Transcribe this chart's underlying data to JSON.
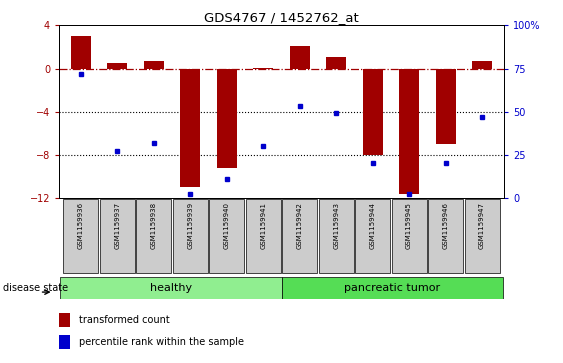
{
  "title": "GDS4767 / 1452762_at",
  "samples": [
    "GSM1159936",
    "GSM1159937",
    "GSM1159938",
    "GSM1159939",
    "GSM1159940",
    "GSM1159941",
    "GSM1159942",
    "GSM1159943",
    "GSM1159944",
    "GSM1159945",
    "GSM1159946",
    "GSM1159947"
  ],
  "bar_values": [
    3.0,
    0.5,
    0.7,
    -11.0,
    -9.2,
    0.05,
    2.1,
    1.1,
    -8.0,
    -11.6,
    -7.0,
    0.7
  ],
  "percentile_values": [
    72,
    27,
    32,
    2,
    11,
    30,
    53,
    49,
    20,
    2,
    20,
    47
  ],
  "bar_color": "#a00000",
  "dot_color": "#0000cc",
  "left_ylim": [
    -12,
    4
  ],
  "right_ylim": [
    0,
    100
  ],
  "left_yticks": [
    -12,
    -8,
    -4,
    0,
    4
  ],
  "right_yticks": [
    0,
    25,
    50,
    75,
    100
  ],
  "right_yticklabels": [
    "0",
    "25",
    "50",
    "75",
    "100%"
  ],
  "hline_y": 0,
  "dotted_lines": [
    -4,
    -8
  ],
  "healthy_label": "healthy",
  "tumor_label": "pancreatic tumor",
  "healthy_color": "#90ee90",
  "tumor_color": "#55dd55",
  "group_box_color": "#cccccc",
  "legend_bar_label": "transformed count",
  "legend_dot_label": "percentile rank within the sample",
  "disease_state_label": "disease state",
  "n_healthy": 6,
  "n_tumor": 6
}
